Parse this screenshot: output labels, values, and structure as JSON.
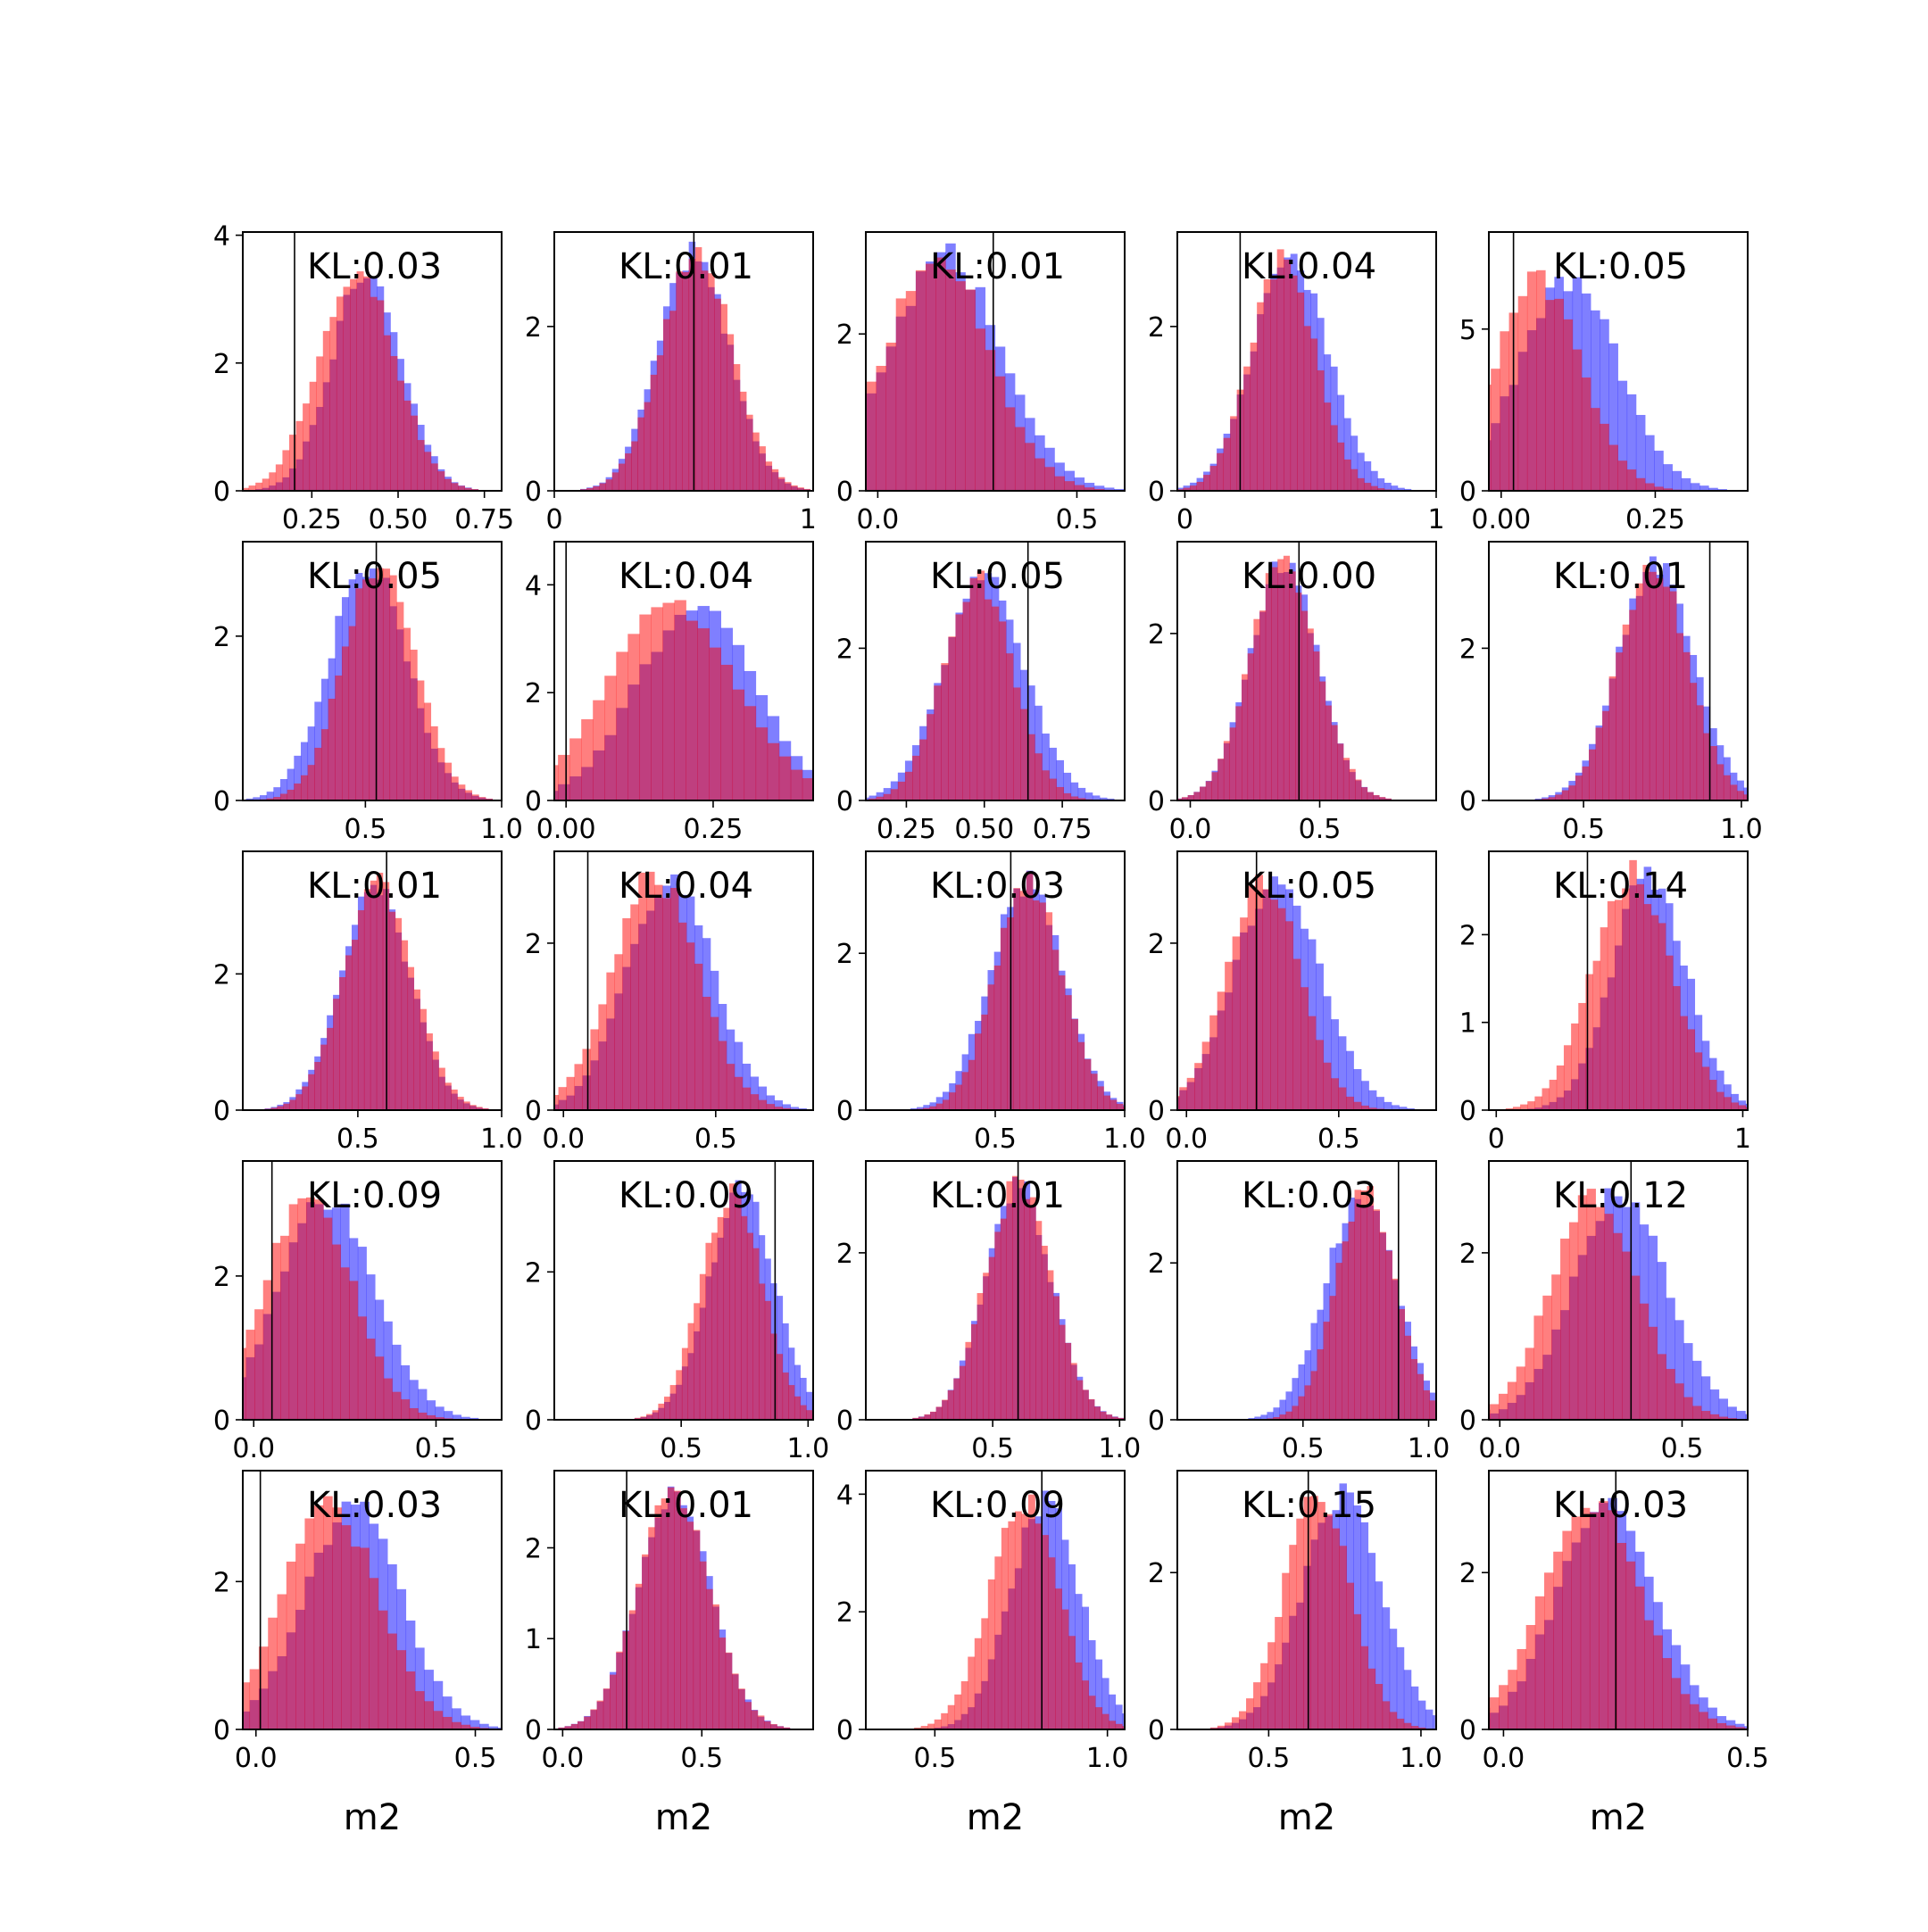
{
  "chart_data": {
    "type": "histogram-grid",
    "rows": 5,
    "cols": 5,
    "colors": {
      "series_a": "#0000ff",
      "series_b": "#ff0000",
      "overlap": "#c03a78",
      "marker_line": "#000000"
    },
    "xlabel": "m2",
    "panels": [
      {
        "kl": "KL:0.03",
        "xlim": [
          0.05,
          0.8
        ],
        "xticks": [
          0.25,
          0.5,
          0.75
        ],
        "xtick_labels": [
          "0.25",
          "0.50",
          "0.75"
        ],
        "ylim": [
          0,
          4.05
        ],
        "yticks": [
          0,
          2,
          4
        ],
        "ytick_labels": [
          "0",
          "2",
          "4"
        ],
        "mu_a": 0.41,
        "sd_a": 0.1,
        "mu_b": 0.38,
        "sd_b": 0.11,
        "peak": 3.5,
        "marker": 0.2
      },
      {
        "kl": "KL:0.01",
        "xlim": [
          0.0,
          1.02
        ],
        "xticks": [
          0.0,
          1.0
        ],
        "xtick_labels": [
          "0",
          "1"
        ],
        "ylim": [
          0,
          3.15
        ],
        "yticks": [
          0,
          2
        ],
        "ytick_labels": [
          "0",
          "2"
        ],
        "mu_a": 0.55,
        "sd_a": 0.14,
        "mu_b": 0.56,
        "sd_b": 0.14,
        "peak": 2.9,
        "marker": 0.55
      },
      {
        "kl": "KL:0.01",
        "xlim": [
          -0.03,
          0.62
        ],
        "xticks": [
          0.0,
          0.5
        ],
        "xtick_labels": [
          "0.0",
          "0.5"
        ],
        "ylim": [
          0,
          3.3
        ],
        "yticks": [
          0,
          2
        ],
        "ytick_labels": [
          "0",
          "2"
        ],
        "mu_a": 0.17,
        "sd_a": 0.14,
        "mu_b": 0.15,
        "sd_b": 0.13,
        "peak": 3.0,
        "marker": 0.29
      },
      {
        "kl": "KL:0.04",
        "xlim": [
          -0.03,
          1.0
        ],
        "xticks": [
          0.0,
          1.0
        ],
        "xtick_labels": [
          "0",
          "1"
        ],
        "ylim": [
          0,
          3.15
        ],
        "yticks": [
          0,
          2
        ],
        "ytick_labels": [
          "0",
          "2"
        ],
        "mu_a": 0.42,
        "sd_a": 0.15,
        "mu_b": 0.39,
        "sd_b": 0.13,
        "peak": 2.8,
        "marker": 0.22
      },
      {
        "kl": "KL:0.05",
        "xlim": [
          -0.02,
          0.4
        ],
        "xticks": [
          0.0,
          0.25
        ],
        "xtick_labels": [
          "0.00",
          "0.25"
        ],
        "ylim": [
          0,
          8.0
        ],
        "yticks": [
          0,
          5
        ],
        "ytick_labels": [
          "0",
          "5"
        ],
        "mu_a": 0.11,
        "sd_a": 0.08,
        "mu_b": 0.06,
        "sd_b": 0.07,
        "peak": 6.5,
        "marker": 0.02
      },
      {
        "kl": "KL:0.05",
        "xlim": [
          0.05,
          1.0
        ],
        "xticks": [
          0.5,
          1.0
        ],
        "xtick_labels": [
          "0.5",
          "1.0"
        ],
        "ylim": [
          0,
          3.15
        ],
        "yticks": [
          0,
          2
        ],
        "ytick_labels": [
          "0",
          "2"
        ],
        "mu_a": 0.51,
        "sd_a": 0.14,
        "mu_b": 0.55,
        "sd_b": 0.13,
        "peak": 2.9,
        "marker": 0.54
      },
      {
        "kl": "KL:0.04",
        "xlim": [
          -0.02,
          0.42
        ],
        "xticks": [
          0.0,
          0.25
        ],
        "xtick_labels": [
          "0.00",
          "0.25"
        ],
        "ylim": [
          0,
          4.8
        ],
        "yticks": [
          0,
          2,
          4
        ],
        "ytick_labels": [
          "0",
          "2",
          "4"
        ],
        "mu_a": 0.22,
        "sd_a": 0.1,
        "mu_b": 0.18,
        "sd_b": 0.11,
        "peak": 3.6,
        "marker": 0.0
      },
      {
        "kl": "KL:0.05",
        "xlim": [
          0.12,
          0.95
        ],
        "xticks": [
          0.25,
          0.5,
          0.75
        ],
        "xtick_labels": [
          "0.25",
          "0.50",
          "0.75"
        ],
        "ylim": [
          0,
          3.4
        ],
        "yticks": [
          0,
          2
        ],
        "ytick_labels": [
          "0",
          "2"
        ],
        "mu_a": 0.5,
        "sd_a": 0.13,
        "mu_b": 0.48,
        "sd_b": 0.11,
        "peak": 2.9,
        "marker": 0.64
      },
      {
        "kl": "KL:0.00",
        "xlim": [
          -0.05,
          0.95
        ],
        "xticks": [
          0.0,
          0.5
        ],
        "xtick_labels": [
          "0.0",
          "0.5"
        ],
        "ylim": [
          0,
          3.1
        ],
        "yticks": [
          0,
          2
        ],
        "ytick_labels": [
          "0",
          "2"
        ],
        "mu_a": 0.36,
        "sd_a": 0.13,
        "mu_b": 0.36,
        "sd_b": 0.13,
        "peak": 2.9,
        "marker": 0.42
      },
      {
        "kl": "KL:0.01",
        "xlim": [
          0.2,
          1.02
        ],
        "xticks": [
          0.5,
          1.0
        ],
        "xtick_labels": [
          "0.5",
          "1.0"
        ],
        "ylim": [
          0,
          3.4
        ],
        "yticks": [
          0,
          2
        ],
        "ytick_labels": [
          "0",
          "2"
        ],
        "mu_a": 0.73,
        "sd_a": 0.12,
        "mu_b": 0.72,
        "sd_b": 0.11,
        "peak": 3.1,
        "marker": 0.9
      },
      {
        "kl": "KL:0.01",
        "xlim": [
          0.1,
          1.0
        ],
        "xticks": [
          0.5,
          1.0
        ],
        "xtick_labels": [
          "0.5",
          "1.0"
        ],
        "ylim": [
          0,
          3.8
        ],
        "yticks": [
          0,
          2
        ],
        "ytick_labels": [
          "0",
          "2"
        ],
        "mu_a": 0.56,
        "sd_a": 0.12,
        "mu_b": 0.57,
        "sd_b": 0.12,
        "peak": 3.3,
        "marker": 0.6
      },
      {
        "kl": "KL:0.04",
        "xlim": [
          -0.03,
          0.82
        ],
        "xticks": [
          0.0,
          0.5
        ],
        "xtick_labels": [
          "0.0",
          "0.5"
        ],
        "ylim": [
          0,
          3.1
        ],
        "yticks": [
          0,
          2
        ],
        "ytick_labels": [
          "0",
          "2"
        ],
        "mu_a": 0.35,
        "sd_a": 0.14,
        "mu_b": 0.3,
        "sd_b": 0.14,
        "peak": 2.8,
        "marker": 0.08
      },
      {
        "kl": "KL:0.03",
        "xlim": [
          0.0,
          1.0
        ],
        "xticks": [
          0.5,
          1.0
        ],
        "xtick_labels": [
          "0.5",
          "1.0"
        ],
        "ylim": [
          0,
          3.3
        ],
        "yticks": [
          0,
          2
        ],
        "ytick_labels": [
          "0",
          "2"
        ],
        "mu_a": 0.62,
        "sd_a": 0.14,
        "mu_b": 0.63,
        "sd_b": 0.13,
        "peak": 2.9,
        "marker": 0.56
      },
      {
        "kl": "KL:0.05",
        "xlim": [
          -0.03,
          0.82
        ],
        "xticks": [
          0.0,
          0.5
        ],
        "xtick_labels": [
          "0.0",
          "0.5"
        ],
        "ylim": [
          0,
          3.1
        ],
        "yticks": [
          0,
          2
        ],
        "ytick_labels": [
          "0",
          "2"
        ],
        "mu_a": 0.3,
        "sd_a": 0.14,
        "mu_b": 0.25,
        "sd_b": 0.12,
        "peak": 2.8,
        "marker": 0.23
      },
      {
        "kl": "KL:0.14",
        "xlim": [
          -0.03,
          1.02
        ],
        "xticks": [
          0.0,
          1.0
        ],
        "xtick_labels": [
          "0",
          "1"
        ],
        "ylim": [
          0,
          2.95
        ],
        "yticks": [
          0,
          1,
          2
        ],
        "ytick_labels": [
          "0",
          "1",
          "2"
        ],
        "mu_a": 0.62,
        "sd_a": 0.15,
        "mu_b": 0.55,
        "sd_b": 0.16,
        "peak": 2.7,
        "marker": 0.37
      },
      {
        "kl": "KL:0.09",
        "xlim": [
          -0.03,
          0.68
        ],
        "xticks": [
          0.0,
          0.5
        ],
        "xtick_labels": [
          "0.0",
          "0.5"
        ],
        "ylim": [
          0,
          3.6
        ],
        "yticks": [
          0,
          2
        ],
        "ytick_labels": [
          "0",
          "2"
        ],
        "mu_a": 0.2,
        "sd_a": 0.13,
        "mu_b": 0.15,
        "sd_b": 0.12,
        "peak": 3.1,
        "marker": 0.05
      },
      {
        "kl": "KL:0.09",
        "xlim": [
          0.0,
          1.02
        ],
        "xticks": [
          0.5,
          1.0
        ],
        "xtick_labels": [
          "0.5",
          "1.0"
        ],
        "ylim": [
          0,
          3.5
        ],
        "yticks": [
          0,
          2
        ],
        "ytick_labels": [
          "0",
          "2"
        ],
        "mu_a": 0.74,
        "sd_a": 0.13,
        "mu_b": 0.7,
        "sd_b": 0.12,
        "peak": 3.1,
        "marker": 0.87
      },
      {
        "kl": "KL:0.01",
        "xlim": [
          0.0,
          1.02
        ],
        "xticks": [
          0.5,
          1.0
        ],
        "xtick_labels": [
          "0.5",
          "1.0"
        ],
        "ylim": [
          0,
          3.1
        ],
        "yticks": [
          0,
          2
        ],
        "ytick_labels": [
          "0",
          "2"
        ],
        "mu_a": 0.6,
        "sd_a": 0.13,
        "mu_b": 0.6,
        "sd_b": 0.13,
        "peak": 2.8,
        "marker": 0.6
      },
      {
        "kl": "KL:0.03",
        "xlim": [
          0.0,
          1.03
        ],
        "xticks": [
          0.5,
          1.0
        ],
        "xtick_labels": [
          "0.5",
          "1.0"
        ],
        "ylim": [
          0,
          3.3
        ],
        "yticks": [
          0,
          2
        ],
        "ytick_labels": [
          "0",
          "2"
        ],
        "mu_a": 0.73,
        "sd_a": 0.14,
        "mu_b": 0.75,
        "sd_b": 0.12,
        "peak": 2.9,
        "marker": 0.88
      },
      {
        "kl": "KL:0.12",
        "xlim": [
          -0.03,
          0.68
        ],
        "xticks": [
          0.0,
          0.5
        ],
        "xtick_labels": [
          "0.0",
          "0.5"
        ],
        "ylim": [
          0,
          3.1
        ],
        "yticks": [
          0,
          2
        ],
        "ytick_labels": [
          "0",
          "2"
        ],
        "mu_a": 0.33,
        "sd_a": 0.13,
        "mu_b": 0.26,
        "sd_b": 0.12,
        "peak": 2.7,
        "marker": 0.36
      },
      {
        "kl": "KL:0.03",
        "xlim": [
          -0.03,
          0.56
        ],
        "xticks": [
          0.0,
          0.5
        ],
        "xtick_labels": [
          "0.0",
          "0.5"
        ],
        "ylim": [
          0,
          3.5
        ],
        "yticks": [
          0,
          2
        ],
        "ytick_labels": [
          "0",
          "2"
        ],
        "mu_a": 0.22,
        "sd_a": 0.11,
        "mu_b": 0.17,
        "sd_b": 0.11,
        "peak": 3.0,
        "marker": 0.01
      },
      {
        "kl": "KL:0.01",
        "xlim": [
          -0.03,
          0.9
        ],
        "xticks": [
          0.0,
          0.5
        ],
        "xtick_labels": [
          "0.0",
          "0.5"
        ],
        "ylim": [
          0,
          2.85
        ],
        "yticks": [
          0,
          1,
          2
        ],
        "ytick_labels": [
          "0",
          "1",
          "2"
        ],
        "mu_a": 0.4,
        "sd_a": 0.13,
        "mu_b": 0.4,
        "sd_b": 0.13,
        "peak": 2.6,
        "marker": 0.23
      },
      {
        "kl": "KL:0.09",
        "xlim": [
          0.3,
          1.05
        ],
        "xticks": [
          0.5,
          1.0
        ],
        "xtick_labels": [
          "0.5",
          "1.0"
        ],
        "ylim": [
          0,
          4.4
        ],
        "yticks": [
          0,
          2,
          4
        ],
        "ytick_labels": [
          "0",
          "2",
          "4"
        ],
        "mu_a": 0.82,
        "sd_a": 0.1,
        "mu_b": 0.76,
        "sd_b": 0.1,
        "peak": 3.9,
        "marker": 0.81
      },
      {
        "kl": "KL:0.15",
        "xlim": [
          0.2,
          1.05
        ],
        "xticks": [
          0.5,
          1.0
        ],
        "xtick_labels": [
          "0.5",
          "1.0"
        ],
        "ylim": [
          0,
          3.3
        ],
        "yticks": [
          0,
          2
        ],
        "ytick_labels": [
          "0",
          "2"
        ],
        "mu_a": 0.74,
        "sd_a": 0.13,
        "mu_b": 0.66,
        "sd_b": 0.11,
        "peak": 3.0,
        "marker": 0.63
      },
      {
        "kl": "KL:0.03",
        "xlim": [
          -0.03,
          0.5
        ],
        "xticks": [
          0.0,
          0.5
        ],
        "xtick_labels": [
          "0.0",
          "0.5"
        ],
        "ylim": [
          0,
          3.3
        ],
        "yticks": [
          0,
          2
        ],
        "ytick_labels": [
          "0",
          "2"
        ],
        "mu_a": 0.21,
        "sd_a": 0.1,
        "mu_b": 0.18,
        "sd_b": 0.1,
        "peak": 2.9,
        "marker": 0.23
      }
    ]
  }
}
